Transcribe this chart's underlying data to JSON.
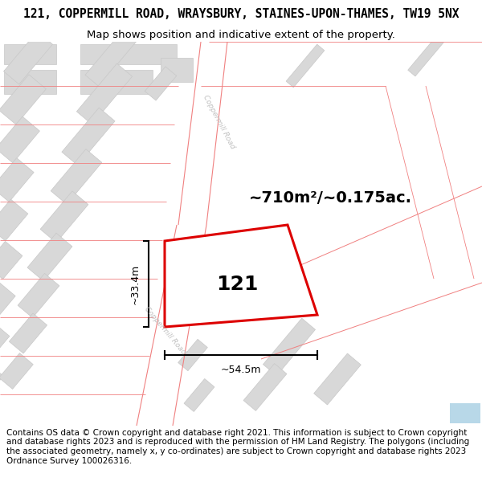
{
  "title_line1": "121, COPPERMILL ROAD, WRAYSBURY, STAINES-UPON-THAMES, TW19 5NX",
  "title_line2": "Map shows position and indicative extent of the property.",
  "footer_text": "Contains OS data © Crown copyright and database right 2021. This information is subject to Crown copyright and database rights 2023 and is reproduced with the permission of HM Land Registry. The polygons (including the associated geometry, namely x, y co-ordinates) are subject to Crown copyright and database rights 2023 Ordnance Survey 100026316.",
  "area_label": "~710m²/~0.175ac.",
  "number_label": "121",
  "dim_height": "~33.4m",
  "dim_width": "~54.5m",
  "road_label_upper": "Coppermill Road",
  "road_label_lower": "Coppermill Road",
  "white": "#ffffff",
  "map_bg": "#ffffff",
  "bld_fill": "#d8d8d8",
  "bld_edge": "#c8c8c8",
  "pink": "#f08080",
  "red": "#dd0000",
  "blue_corner": "#b8d8e8",
  "road_text_color": "#c0c0c0",
  "title_fs": 10.5,
  "sub_fs": 9.5,
  "footer_fs": 7.5,
  "area_fs": 14,
  "num_fs": 18,
  "dim_fs": 9
}
